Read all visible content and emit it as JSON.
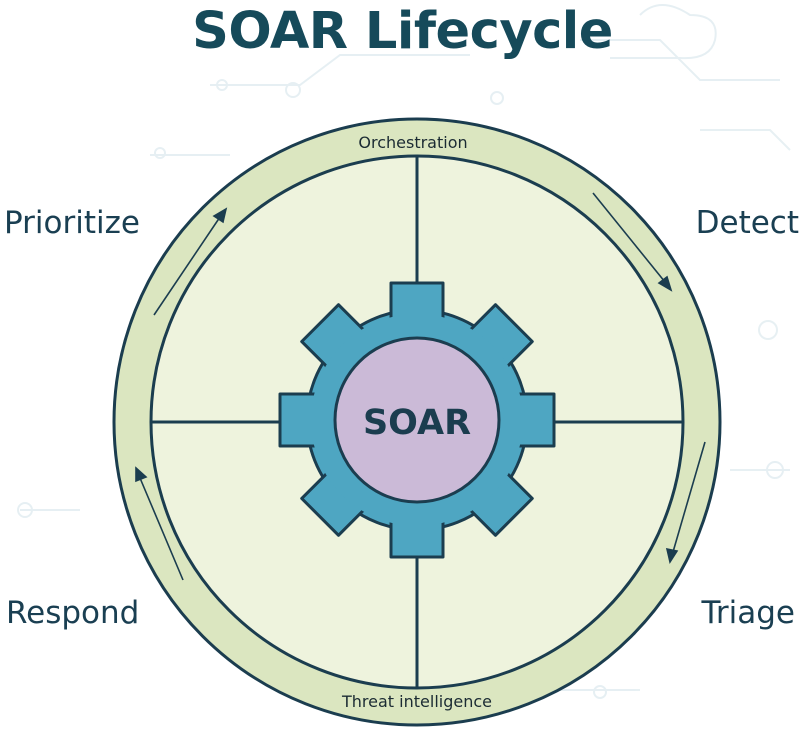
{
  "title": "SOAR Lifecycle",
  "center_label": "SOAR",
  "ring_labels": {
    "top": "Orchestration",
    "bottom": "Threat intelligence"
  },
  "phases": {
    "prioritize": "Prioritize",
    "detect": "Detect",
    "triage": "Triage",
    "respond": "Respond"
  },
  "colors": {
    "title": "#164a5a",
    "ring": "#dbe6c0",
    "inner_fill": "#eef3dd",
    "outline": "#1b3d4f",
    "gear": "#4ea6c2",
    "hub": "#cbbad7"
  }
}
